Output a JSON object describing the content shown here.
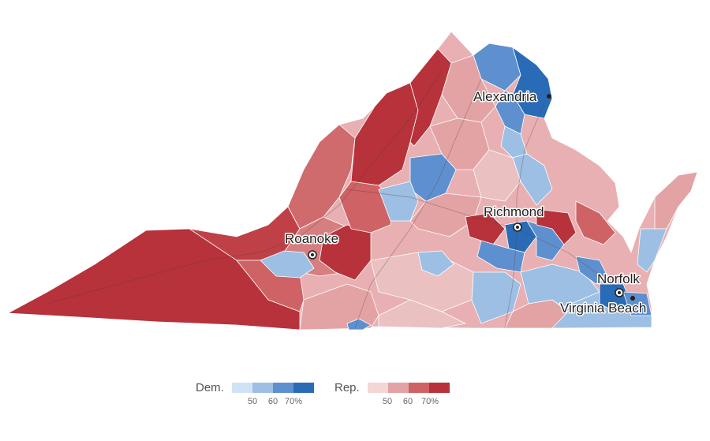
{
  "map": {
    "cities": [
      {
        "name": "Alexandria",
        "marker": "dot"
      },
      {
        "name": "Richmond",
        "marker": "ring"
      },
      {
        "name": "Roanoke",
        "marker": "ring"
      },
      {
        "name": "Norfolk",
        "marker": "ring"
      },
      {
        "name": "Virginia Beach",
        "marker": "dot"
      }
    ]
  },
  "legend": {
    "dem": {
      "label": "Dem.",
      "colors": [
        "#cfe3f7",
        "#9dbfe3",
        "#5e90cf",
        "#2a6bb7"
      ],
      "ticks": [
        "50",
        "60",
        "70%"
      ]
    },
    "rep": {
      "label": "Rep.",
      "colors": [
        "#f4d6d6",
        "#e3a3a5",
        "#cf6265",
        "#b7323a"
      ],
      "ticks": [
        "50",
        "60",
        "70%"
      ]
    }
  }
}
